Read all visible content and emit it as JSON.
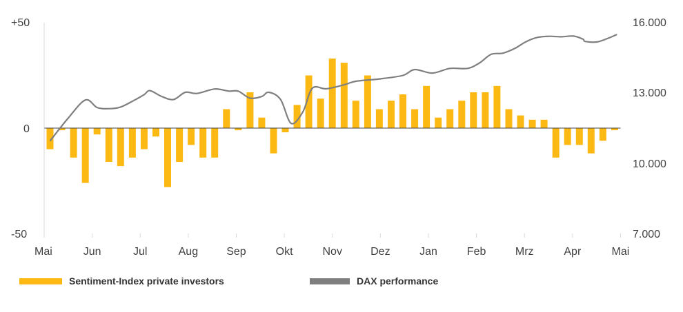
{
  "colors": {
    "bars": "#FDB913",
    "line": "#7F7F7F",
    "zero_line": "#404040",
    "text": "#404040"
  },
  "legend": {
    "sentiment_label": "Sentiment-Index private investors",
    "dax_label": "DAX performance"
  },
  "chart_data": {
    "type": "bar+line",
    "title": "",
    "x_tick_labels": [
      "Mai",
      "Jun",
      "Jul",
      "Aug",
      "Sep",
      "Okt",
      "Nov",
      "Dez",
      "Jan",
      "Feb",
      "Mrz",
      "Apr",
      "Mai"
    ],
    "y_left": {
      "ylim": [
        -50,
        50
      ],
      "tick_labels": [
        "+50",
        "0",
        "-50"
      ],
      "tick_values": [
        50,
        0,
        -50
      ]
    },
    "y_right": {
      "ylim": [
        7000,
        16000
      ],
      "tick_labels": [
        "16.000",
        "13.000",
        "10.000",
        "7.000"
      ],
      "tick_values": [
        16000,
        13000,
        10000,
        7000
      ]
    },
    "series": [
      {
        "name": "Sentiment-Index private investors",
        "type": "bar",
        "axis": "left",
        "values": [
          -10,
          -1,
          -14,
          -26,
          -3,
          -16,
          -18,
          -14,
          -10,
          -4,
          -28,
          -16,
          -8,
          -14,
          -14,
          9,
          -1,
          17,
          5,
          -12,
          -2,
          11,
          25,
          14,
          33,
          31,
          13,
          25,
          9,
          13,
          16,
          9,
          20,
          5,
          9,
          13,
          17,
          17,
          20,
          9,
          6,
          4,
          4,
          -14,
          -8,
          -8,
          -12,
          -6,
          -1
        ]
      },
      {
        "name": "DAX performance",
        "type": "line",
        "axis": "right",
        "x": [
          0,
          1.5,
          3,
          4,
          5,
          6,
          7.2,
          8,
          8.5,
          9.5,
          10.5,
          11.5,
          12.5,
          14,
          15.2,
          16,
          17,
          18,
          18.6,
          19.6,
          20.5,
          21.5,
          22.3,
          23.5,
          25,
          26,
          28,
          30,
          31,
          32.5,
          34,
          35.5,
          36.5,
          37.5,
          38.5,
          39.5,
          40.5,
          41.5,
          42.5,
          43.5,
          44.5,
          45.3,
          45.5,
          46.5,
          47.5,
          48.2
        ],
        "values": [
          10950,
          11900,
          12700,
          12380,
          12330,
          12400,
          12700,
          12930,
          13100,
          12850,
          12720,
          13030,
          12980,
          13170,
          13080,
          13080,
          12780,
          12850,
          13030,
          12720,
          11700,
          12200,
          13200,
          13180,
          13350,
          13500,
          13600,
          13750,
          14000,
          13850,
          14050,
          14050,
          14280,
          14650,
          14700,
          14900,
          15200,
          15380,
          15420,
          15400,
          15430,
          15300,
          15200,
          15180,
          15350,
          15500
        ]
      }
    ]
  }
}
